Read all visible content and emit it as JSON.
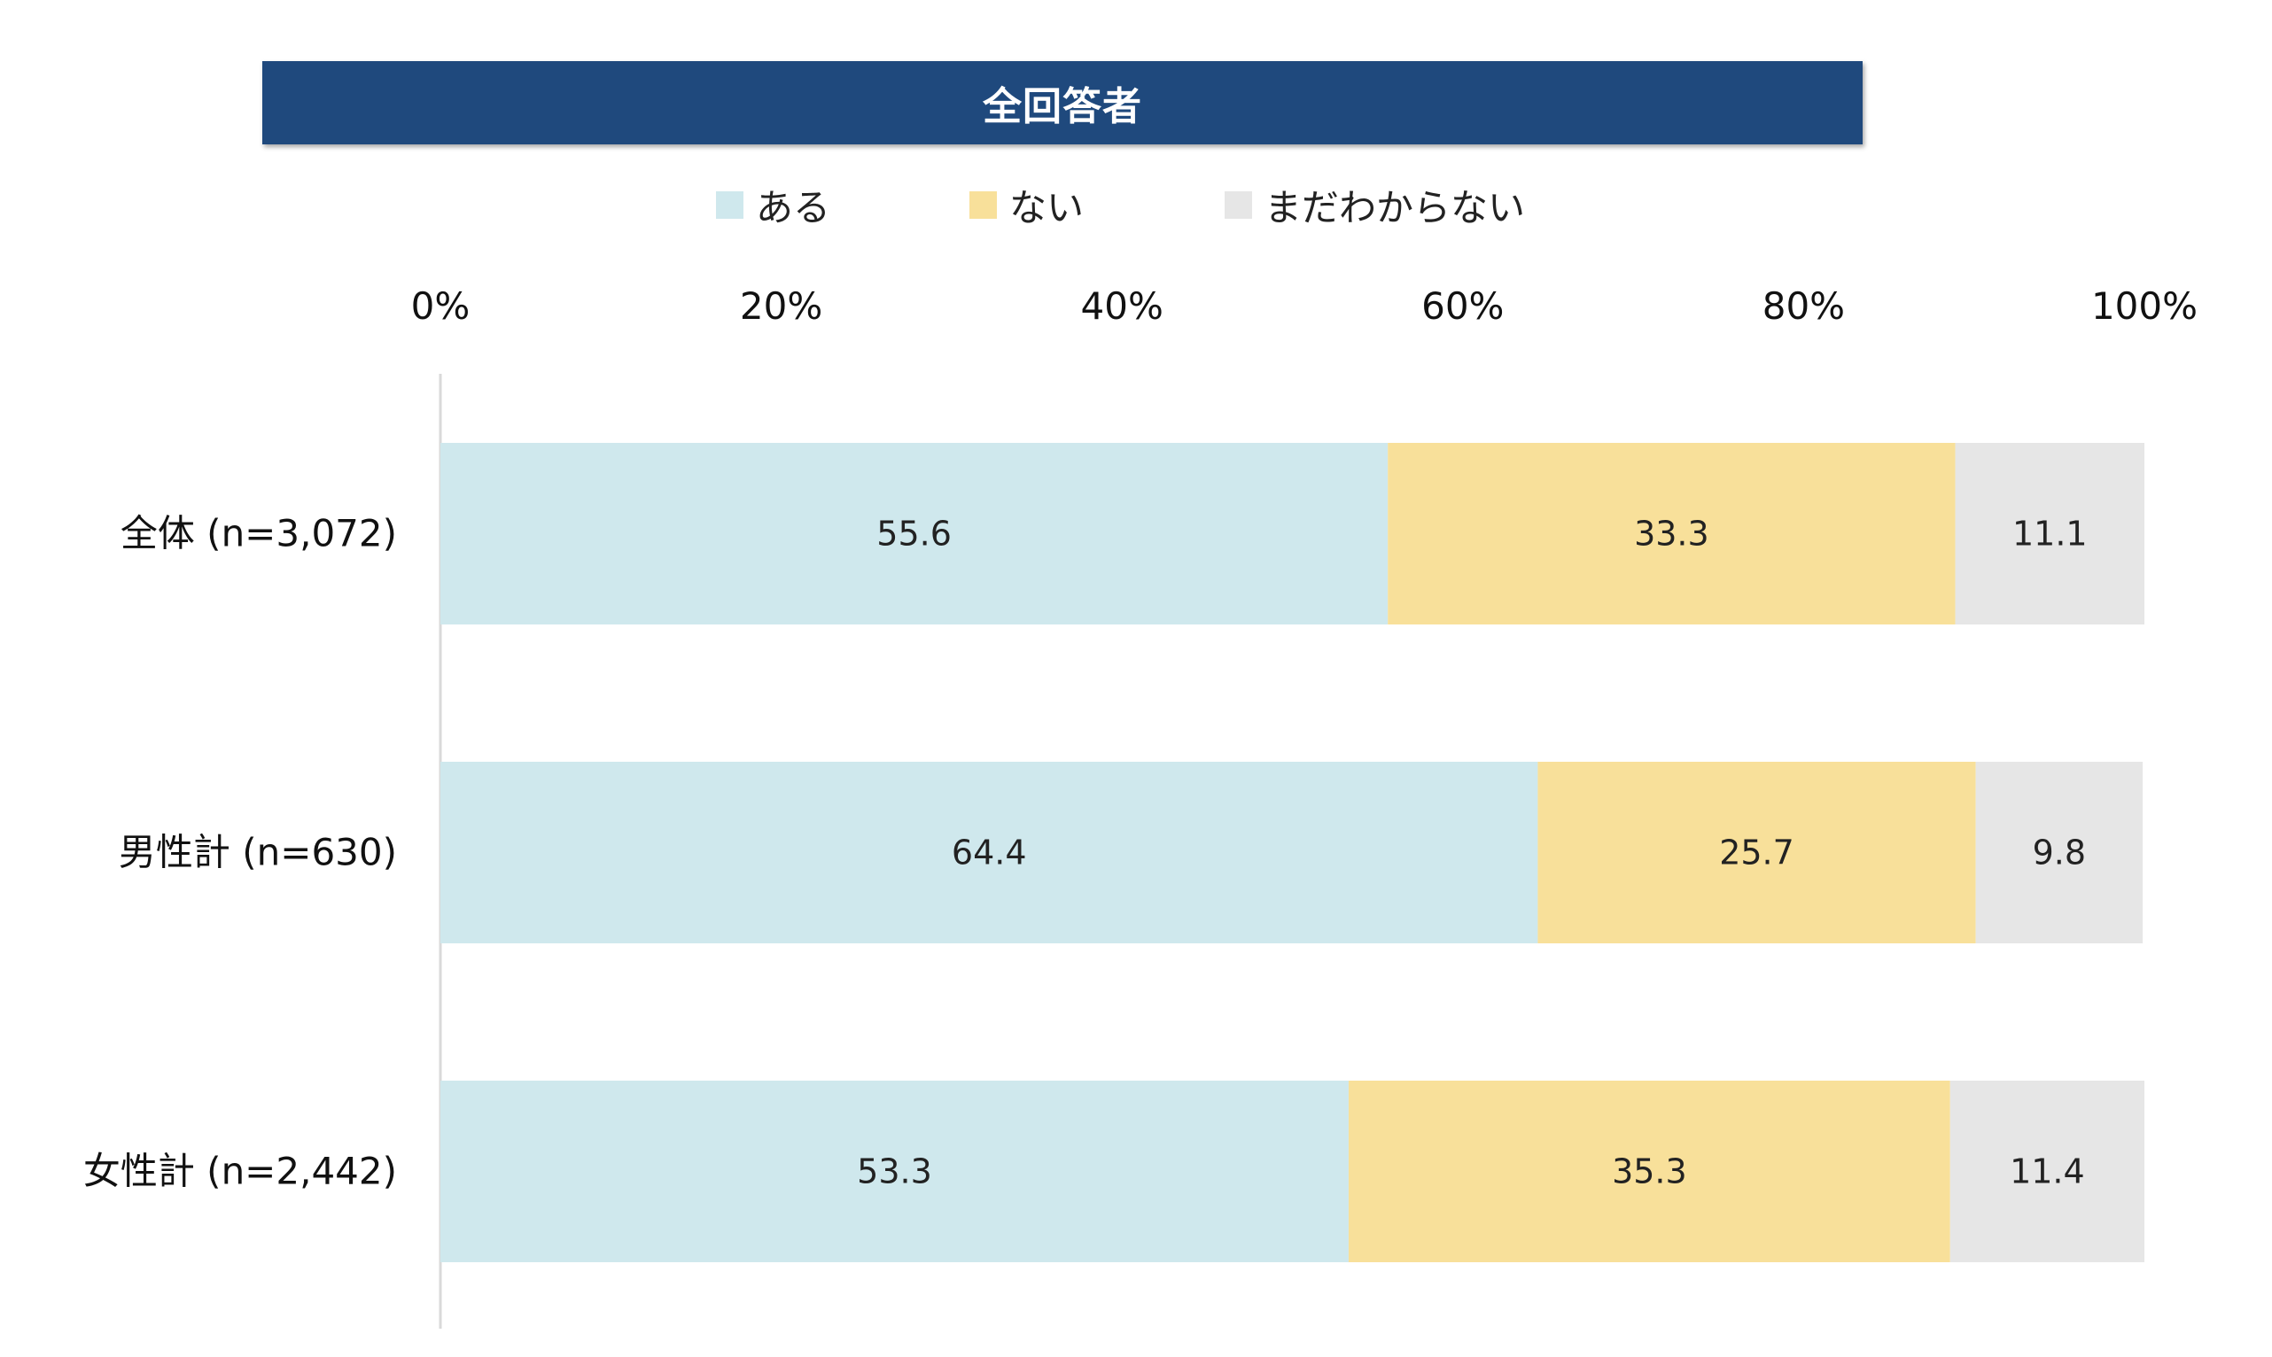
{
  "chart_data": {
    "type": "bar",
    "orientation": "horizontal",
    "stacked": true,
    "title": "全回答者",
    "categories": [
      "全体 (n=3,072)",
      "男性計 (n=630)",
      "女性計 (n=2,442)"
    ],
    "series": [
      {
        "name": "ある",
        "color": "#cfe8ed",
        "values": [
          55.6,
          64.4,
          53.3
        ]
      },
      {
        "name": "ない",
        "color": "#f8e09a",
        "values": [
          33.3,
          25.7,
          35.3
        ]
      },
      {
        "name": "まだわからない",
        "color": "#e6e6e6",
        "values": [
          11.1,
          9.8,
          11.4
        ]
      }
    ],
    "xlim": [
      0,
      100
    ],
    "xticks": [
      "0%",
      "20%",
      "40%",
      "60%",
      "80%",
      "100%"
    ],
    "legend_position": "top",
    "grid": false
  },
  "colors": {
    "title_background": "#1f497d",
    "title_text": "#ffffff",
    "axis_line": "#d9d9d9"
  }
}
